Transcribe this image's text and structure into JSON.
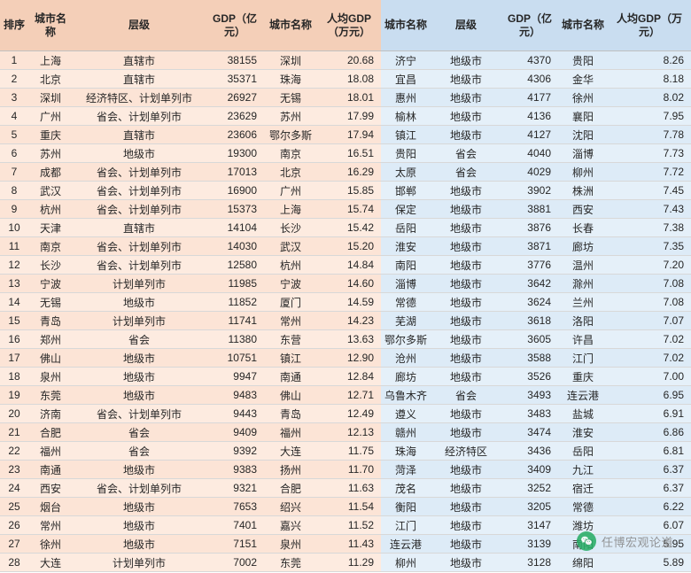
{
  "headers": {
    "rank": "排序",
    "city": "城市名称",
    "tier": "层级",
    "gdp": "GDP（亿元）",
    "city2": "城市名称",
    "per_capita_gdp": "人均GDP（万元）"
  },
  "left": [
    {
      "rank": 1,
      "city": "上海",
      "tier": "直辖市",
      "gdp": "38155",
      "city2": "深圳",
      "pcg": "20.68"
    },
    {
      "rank": 2,
      "city": "北京",
      "tier": "直辖市",
      "gdp": "35371",
      "city2": "珠海",
      "pcg": "18.08"
    },
    {
      "rank": 3,
      "city": "深圳",
      "tier": "经济特区、计划单列市",
      "gdp": "26927",
      "city2": "无锡",
      "pcg": "18.01"
    },
    {
      "rank": 4,
      "city": "广州",
      "tier": "省会、计划单列市",
      "gdp": "23629",
      "city2": "苏州",
      "pcg": "17.99"
    },
    {
      "rank": 5,
      "city": "重庆",
      "tier": "直辖市",
      "gdp": "23606",
      "city2": "鄂尔多斯",
      "pcg": "17.94"
    },
    {
      "rank": 6,
      "city": "苏州",
      "tier": "地级市",
      "gdp": "19300",
      "city2": "南京",
      "pcg": "16.51"
    },
    {
      "rank": 7,
      "city": "成都",
      "tier": "省会、计划单列市",
      "gdp": "17013",
      "city2": "北京",
      "pcg": "16.29"
    },
    {
      "rank": 8,
      "city": "武汉",
      "tier": "省会、计划单列市",
      "gdp": "16900",
      "city2": "广州",
      "pcg": "15.85"
    },
    {
      "rank": 9,
      "city": "杭州",
      "tier": "省会、计划单列市",
      "gdp": "15373",
      "city2": "上海",
      "pcg": "15.74"
    },
    {
      "rank": 10,
      "city": "天津",
      "tier": "直辖市",
      "gdp": "14104",
      "city2": "长沙",
      "pcg": "15.42"
    },
    {
      "rank": 11,
      "city": "南京",
      "tier": "省会、计划单列市",
      "gdp": "14030",
      "city2": "武汉",
      "pcg": "15.20"
    },
    {
      "rank": 12,
      "city": "长沙",
      "tier": "省会、计划单列市",
      "gdp": "12580",
      "city2": "杭州",
      "pcg": "14.84"
    },
    {
      "rank": 13,
      "city": "宁波",
      "tier": "计划单列市",
      "gdp": "11985",
      "city2": "宁波",
      "pcg": "14.60"
    },
    {
      "rank": 14,
      "city": "无锡",
      "tier": "地级市",
      "gdp": "11852",
      "city2": "厦门",
      "pcg": "14.59"
    },
    {
      "rank": 15,
      "city": "青岛",
      "tier": "计划单列市",
      "gdp": "11741",
      "city2": "常州",
      "pcg": "14.23"
    },
    {
      "rank": 16,
      "city": "郑州",
      "tier": "省会",
      "gdp": "11380",
      "city2": "东营",
      "pcg": "13.63"
    },
    {
      "rank": 17,
      "city": "佛山",
      "tier": "地级市",
      "gdp": "10751",
      "city2": "镇江",
      "pcg": "12.90"
    },
    {
      "rank": 18,
      "city": "泉州",
      "tier": "地级市",
      "gdp": "9947",
      "city2": "南通",
      "pcg": "12.84"
    },
    {
      "rank": 19,
      "city": "东莞",
      "tier": "地级市",
      "gdp": "9483",
      "city2": "佛山",
      "pcg": "12.71"
    },
    {
      "rank": 20,
      "city": "济南",
      "tier": "省会、计划单列市",
      "gdp": "9443",
      "city2": "青岛",
      "pcg": "12.49"
    },
    {
      "rank": 21,
      "city": "合肥",
      "tier": "省会",
      "gdp": "9409",
      "city2": "福州",
      "pcg": "12.13"
    },
    {
      "rank": 22,
      "city": "福州",
      "tier": "省会",
      "gdp": "9392",
      "city2": "大连",
      "pcg": "11.75"
    },
    {
      "rank": 23,
      "city": "南通",
      "tier": "地级市",
      "gdp": "9383",
      "city2": "扬州",
      "pcg": "11.70"
    },
    {
      "rank": 24,
      "city": "西安",
      "tier": "省会、计划单列市",
      "gdp": "9321",
      "city2": "合肥",
      "pcg": "11.63"
    },
    {
      "rank": 25,
      "city": "烟台",
      "tier": "地级市",
      "gdp": "7653",
      "city2": "绍兴",
      "pcg": "11.54"
    },
    {
      "rank": 26,
      "city": "常州",
      "tier": "地级市",
      "gdp": "7401",
      "city2": "嘉兴",
      "pcg": "11.52"
    },
    {
      "rank": 27,
      "city": "徐州",
      "tier": "地级市",
      "gdp": "7151",
      "city2": "泉州",
      "pcg": "11.43"
    },
    {
      "rank": 28,
      "city": "大连",
      "tier": "计划单列市",
      "gdp": "7002",
      "city2": "东莞",
      "pcg": "11.29"
    }
  ],
  "right": [
    {
      "city": "济宁",
      "tier": "地级市",
      "gdp": "4370",
      "city2": "贵阳",
      "pcg": "8.26"
    },
    {
      "city": "宜昌",
      "tier": "地级市",
      "gdp": "4306",
      "city2": "金华",
      "pcg": "8.18"
    },
    {
      "city": "惠州",
      "tier": "地级市",
      "gdp": "4177",
      "city2": "徐州",
      "pcg": "8.02"
    },
    {
      "city": "榆林",
      "tier": "地级市",
      "gdp": "4136",
      "city2": "襄阳",
      "pcg": "7.95"
    },
    {
      "city": "镇江",
      "tier": "地级市",
      "gdp": "4127",
      "city2": "沈阳",
      "pcg": "7.78"
    },
    {
      "city": "贵阳",
      "tier": "省会",
      "gdp": "4040",
      "city2": "淄博",
      "pcg": "7.73"
    },
    {
      "city": "太原",
      "tier": "省会",
      "gdp": "4029",
      "city2": "柳州",
      "pcg": "7.72"
    },
    {
      "city": "邯郸",
      "tier": "地级市",
      "gdp": "3902",
      "city2": "株洲",
      "pcg": "7.45"
    },
    {
      "city": "保定",
      "tier": "地级市",
      "gdp": "3881",
      "city2": "西安",
      "pcg": "7.43"
    },
    {
      "city": "岳阳",
      "tier": "地级市",
      "gdp": "3876",
      "city2": "长春",
      "pcg": "7.38"
    },
    {
      "city": "淮安",
      "tier": "地级市",
      "gdp": "3871",
      "city2": "廊坊",
      "pcg": "7.35"
    },
    {
      "city": "南阳",
      "tier": "地级市",
      "gdp": "3776",
      "city2": "温州",
      "pcg": "7.20"
    },
    {
      "city": "淄博",
      "tier": "地级市",
      "gdp": "3642",
      "city2": "滁州",
      "pcg": "7.08"
    },
    {
      "city": "常德",
      "tier": "地级市",
      "gdp": "3624",
      "city2": "兰州",
      "pcg": "7.08"
    },
    {
      "city": "芜湖",
      "tier": "地级市",
      "gdp": "3618",
      "city2": "洛阳",
      "pcg": "7.07"
    },
    {
      "city": "鄂尔多斯",
      "tier": "地级市",
      "gdp": "3605",
      "city2": "许昌",
      "pcg": "7.02"
    },
    {
      "city": "沧州",
      "tier": "地级市",
      "gdp": "3588",
      "city2": "江门",
      "pcg": "7.02"
    },
    {
      "city": "廊坊",
      "tier": "地级市",
      "gdp": "3526",
      "city2": "重庆",
      "pcg": "7.00"
    },
    {
      "city": "乌鲁木齐",
      "tier": "省会",
      "gdp": "3493",
      "city2": "连云港",
      "pcg": "6.95"
    },
    {
      "city": "遵义",
      "tier": "地级市",
      "gdp": "3483",
      "city2": "盐城",
      "pcg": "6.91"
    },
    {
      "city": "赣州",
      "tier": "地级市",
      "gdp": "3474",
      "city2": "淮安",
      "pcg": "6.86"
    },
    {
      "city": "珠海",
      "tier": "经济特区",
      "gdp": "3436",
      "city2": "岳阳",
      "pcg": "6.81"
    },
    {
      "city": "菏泽",
      "tier": "地级市",
      "gdp": "3409",
      "city2": "九江",
      "pcg": "6.37"
    },
    {
      "city": "茂名",
      "tier": "地级市",
      "gdp": "3252",
      "city2": "宿迁",
      "pcg": "6.37"
    },
    {
      "city": "衡阳",
      "tier": "地级市",
      "gdp": "3205",
      "city2": "常德",
      "pcg": "6.22"
    },
    {
      "city": "江门",
      "tier": "地级市",
      "gdp": "3147",
      "city2": "潍坊",
      "pcg": "6.07"
    },
    {
      "city": "连云港",
      "tier": "地级市",
      "gdp": "3139",
      "city2": "南阳",
      "pcg": "5.95"
    },
    {
      "city": "柳州",
      "tier": "地级市",
      "gdp": "3128",
      "city2": "绵阳",
      "pcg": "5.89"
    }
  ],
  "watermark": "任博宏观论道",
  "colors": {
    "left_bg": "#fce4d6",
    "left_header_bg": "#f4cfb8",
    "right_bg": "#ddebf7",
    "right_header_bg": "#c9ddf0",
    "border": "#d8d8d8",
    "text": "#262626",
    "wm_logo": "#2aae67",
    "wm_text": "#888888"
  }
}
